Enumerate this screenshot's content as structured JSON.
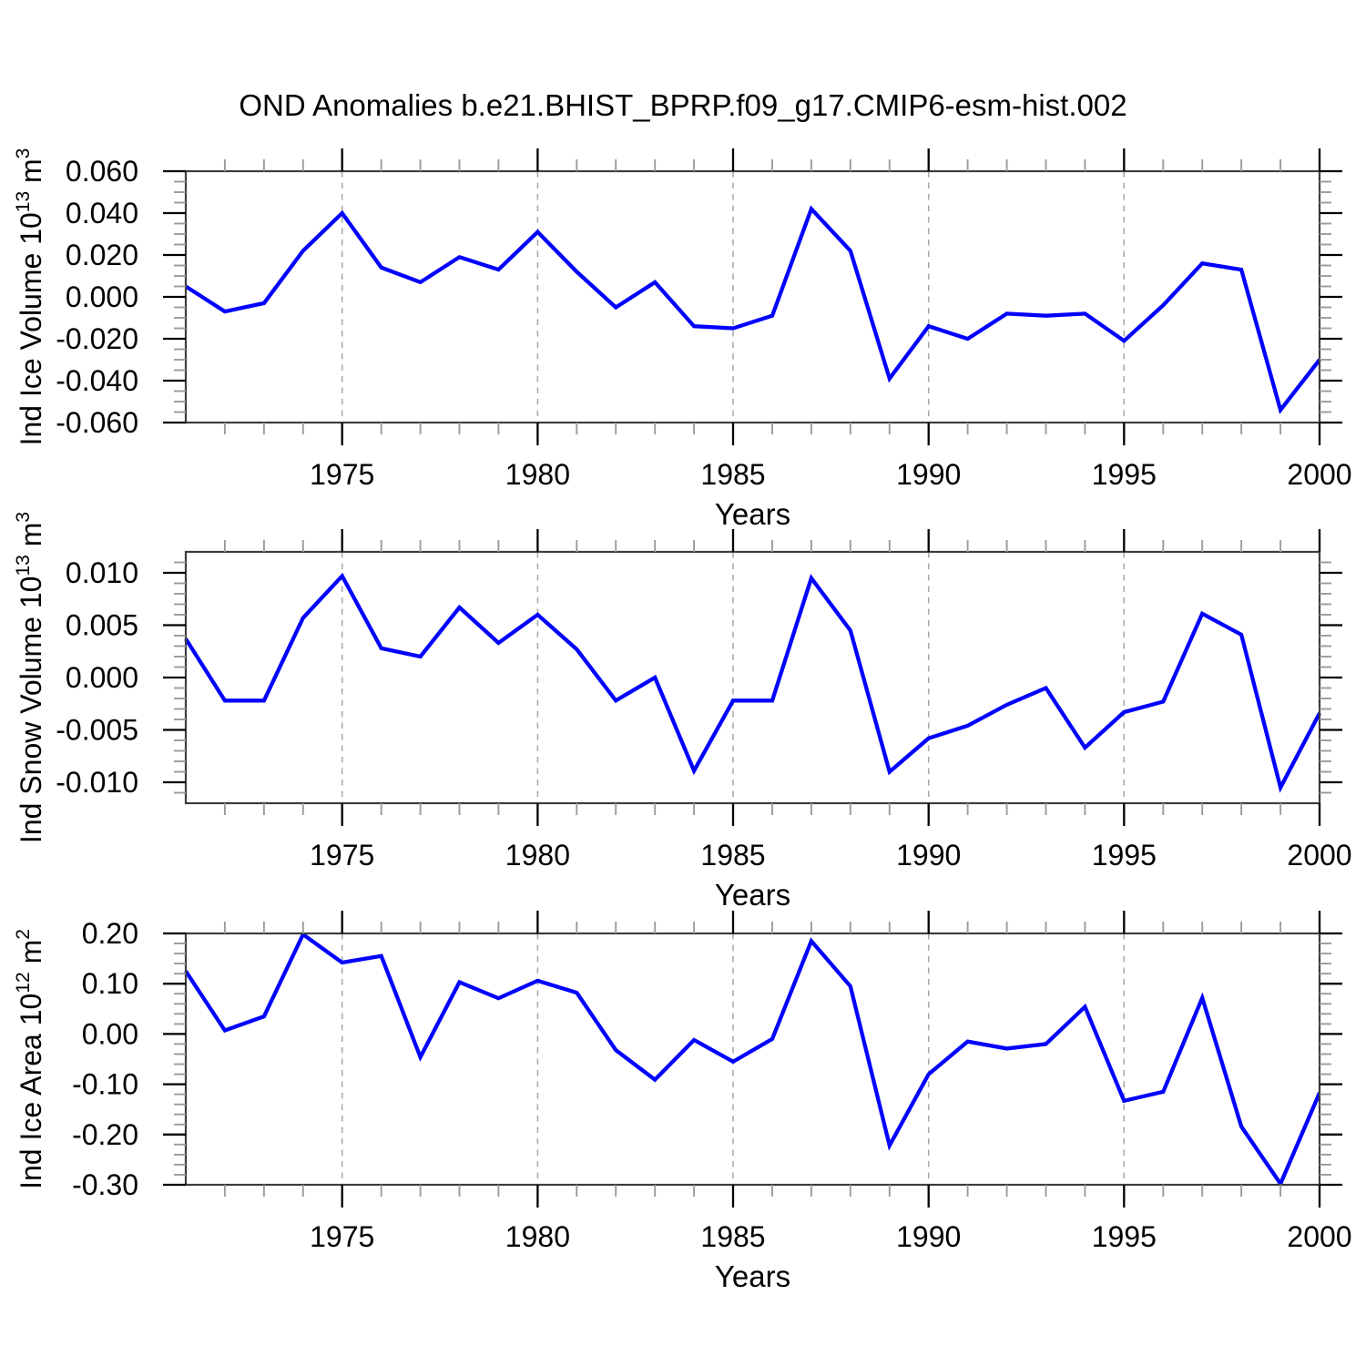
{
  "title": "OND Anomalies b.e21.BHIST_BPRP.f09_g17.CMIP6-esm-hist.002",
  "colors": {
    "line": "#0000ff",
    "box": "#3d3d3d",
    "major_tick": "#000000",
    "minor_tick": "#9b9b9b",
    "grid": "#a6a6a6",
    "text": "#000000",
    "background": "#ffffff"
  },
  "chart_data": [
    {
      "type": "line",
      "name": "ind-ice-volume",
      "ylabel_text": "Ind Ice Volume 10^13 m^3",
      "ylabel_parts": [
        {
          "t": "Ind Ice Volume 10"
        },
        {
          "t": "13",
          "sup": true
        },
        {
          "t": " m"
        },
        {
          "t": "3",
          "sup": true
        }
      ],
      "xlabel": "Years",
      "x": [
        1971,
        1972,
        1973,
        1974,
        1975,
        1976,
        1977,
        1978,
        1979,
        1980,
        1981,
        1982,
        1983,
        1984,
        1985,
        1986,
        1987,
        1988,
        1989,
        1990,
        1991,
        1992,
        1993,
        1994,
        1995,
        1996,
        1997,
        1998,
        1999,
        2000
      ],
      "values": [
        0.005,
        -0.007,
        -0.003,
        0.022,
        0.04,
        0.014,
        0.007,
        0.019,
        0.013,
        0.031,
        0.012,
        -0.005,
        0.007,
        -0.014,
        -0.015,
        -0.009,
        0.042,
        0.022,
        -0.039,
        -0.014,
        -0.02,
        -0.008,
        -0.009,
        -0.008,
        -0.021,
        -0.004,
        0.016,
        0.013,
        -0.054,
        -0.03
      ],
      "ylim": [
        -0.06,
        0.06
      ],
      "yticks": [
        {
          "v": 0.06,
          "label": "0.060"
        },
        {
          "v": 0.04,
          "label": "0.040"
        },
        {
          "v": 0.02,
          "label": "0.020"
        },
        {
          "v": 0.0,
          "label": "0.000"
        },
        {
          "v": -0.02,
          "label": "-0.020"
        },
        {
          "v": -0.04,
          "label": "-0.040"
        },
        {
          "v": -0.06,
          "label": "-0.060"
        }
      ],
      "yminor_step": 0.005,
      "xticks": [
        {
          "v": 1975,
          "label": "1975"
        },
        {
          "v": 1980,
          "label": "1980"
        },
        {
          "v": 1985,
          "label": "1985"
        },
        {
          "v": 1990,
          "label": "1990"
        },
        {
          "v": 1995,
          "label": "1995"
        },
        {
          "v": 2000,
          "label": "2000"
        }
      ],
      "xminor_step": 1,
      "grid_x": [
        1975,
        1980,
        1985,
        1990,
        1995
      ],
      "grid_style": "dashed"
    },
    {
      "type": "line",
      "name": "ind-snow-volume",
      "ylabel_text": "Ind Snow Volume 10^13 m^3",
      "ylabel_parts": [
        {
          "t": "Ind Snow Volume 10"
        },
        {
          "t": "13",
          "sup": true
        },
        {
          "t": " m"
        },
        {
          "t": "3",
          "sup": true
        }
      ],
      "xlabel": "Years",
      "x": [
        1971,
        1972,
        1973,
        1974,
        1975,
        1976,
        1977,
        1978,
        1979,
        1980,
        1981,
        1982,
        1983,
        1984,
        1985,
        1986,
        1987,
        1988,
        1989,
        1990,
        1991,
        1992,
        1993,
        1994,
        1995,
        1996,
        1997,
        1998,
        1999,
        2000
      ],
      "values": [
        0.0037,
        -0.0022,
        -0.0022,
        0.0057,
        0.0097,
        0.0028,
        0.002,
        0.0067,
        0.0033,
        0.006,
        0.0027,
        -0.0022,
        0.0,
        -0.0089,
        -0.0022,
        -0.0022,
        0.0095,
        0.0045,
        -0.009,
        -0.0058,
        -0.0046,
        -0.0026,
        -0.001,
        -0.0067,
        -0.0033,
        -0.0023,
        0.0061,
        0.0041,
        -0.0105,
        -0.0034
      ],
      "ylim": [
        -0.012,
        0.012
      ],
      "yticks": [
        {
          "v": 0.01,
          "label": "0.010"
        },
        {
          "v": 0.005,
          "label": "0.005"
        },
        {
          "v": 0.0,
          "label": "0.000"
        },
        {
          "v": -0.005,
          "label": "-0.005"
        },
        {
          "v": -0.01,
          "label": "-0.010"
        }
      ],
      "yminor_step": 0.001,
      "xticks": [
        {
          "v": 1975,
          "label": "1975"
        },
        {
          "v": 1980,
          "label": "1980"
        },
        {
          "v": 1985,
          "label": "1985"
        },
        {
          "v": 1990,
          "label": "1990"
        },
        {
          "v": 1995,
          "label": "1995"
        },
        {
          "v": 2000,
          "label": "2000"
        }
      ],
      "xminor_step": 1,
      "grid_x": [
        1975,
        1980,
        1985,
        1990,
        1995
      ],
      "grid_style": "dashed"
    },
    {
      "type": "line",
      "name": "ind-ice-area",
      "ylabel_text": "Ind Ice Area 10^12 m^2",
      "ylabel_parts": [
        {
          "t": "Ind Ice Area 10"
        },
        {
          "t": "12",
          "sup": true
        },
        {
          "t": " m"
        },
        {
          "t": "2",
          "sup": true
        }
      ],
      "xlabel": "Years",
      "x": [
        1971,
        1972,
        1973,
        1974,
        1975,
        1976,
        1977,
        1978,
        1979,
        1980,
        1981,
        1982,
        1983,
        1984,
        1985,
        1986,
        1987,
        1988,
        1989,
        1990,
        1991,
        1992,
        1993,
        1994,
        1995,
        1996,
        1997,
        1998,
        1999,
        2000
      ],
      "values": [
        0.125,
        0.007,
        0.035,
        0.198,
        0.142,
        0.155,
        -0.046,
        0.103,
        0.071,
        0.106,
        0.082,
        -0.032,
        -0.091,
        -0.012,
        -0.055,
        -0.01,
        0.185,
        0.095,
        -0.222,
        -0.08,
        -0.015,
        -0.029,
        -0.02,
        0.054,
        -0.133,
        -0.115,
        0.072,
        -0.184,
        -0.298,
        -0.117
      ],
      "ylim": [
        -0.3,
        0.2
      ],
      "yticks": [
        {
          "v": 0.2,
          "label": "0.20"
        },
        {
          "v": 0.1,
          "label": "0.10"
        },
        {
          "v": 0.0,
          "label": "0.00"
        },
        {
          "v": -0.1,
          "label": "-0.10"
        },
        {
          "v": -0.2,
          "label": "-0.20"
        },
        {
          "v": -0.3,
          "label": "-0.30"
        }
      ],
      "yminor_step": 0.02,
      "xticks": [
        {
          "v": 1975,
          "label": "1975"
        },
        {
          "v": 1980,
          "label": "1980"
        },
        {
          "v": 1985,
          "label": "1985"
        },
        {
          "v": 1990,
          "label": "1990"
        },
        {
          "v": 1995,
          "label": "1995"
        },
        {
          "v": 2000,
          "label": "2000"
        }
      ],
      "xminor_step": 1,
      "grid_x": [
        1975,
        1980,
        1985,
        1990,
        1995
      ],
      "grid_style": "dashed"
    }
  ]
}
